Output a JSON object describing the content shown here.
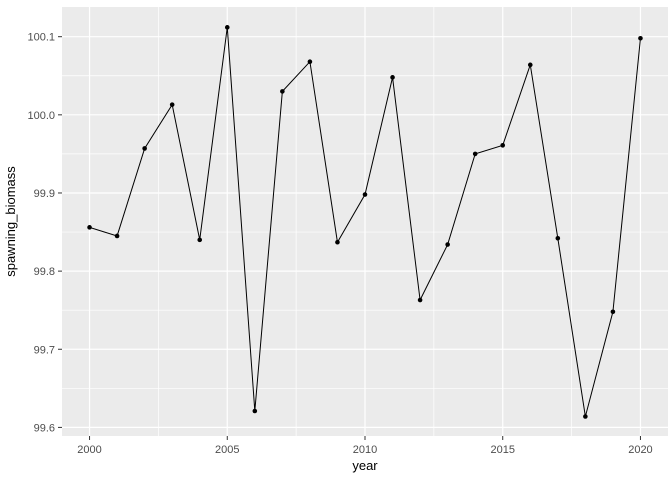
{
  "figure": {
    "background": "#FFFFFF"
  },
  "chart_data": {
    "type": "line",
    "title": "",
    "xlabel": "year",
    "ylabel": "spawning_biomass",
    "x": [
      2000,
      2001,
      2002,
      2003,
      2004,
      2005,
      2006,
      2007,
      2008,
      2009,
      2010,
      2011,
      2012,
      2013,
      2014,
      2015,
      2016,
      2017,
      2018,
      2019,
      2020
    ],
    "series": [
      {
        "name": "spawning_biomass",
        "values": [
          99.856,
          99.845,
          99.957,
          100.013,
          99.84,
          100.112,
          99.621,
          100.03,
          100.068,
          99.837,
          99.898,
          100.048,
          99.763,
          99.834,
          99.95,
          99.961,
          100.064,
          99.842,
          99.614,
          99.748,
          100.098
        ]
      }
    ],
    "xlim": [
      1999,
      2021
    ],
    "ylim": [
      99.589,
      100.138
    ],
    "x_ticks": [
      2000,
      2005,
      2010,
      2015,
      2020
    ],
    "x_tick_labels": [
      "2000",
      "2005",
      "2010",
      "2015",
      "2020"
    ],
    "y_ticks": [
      99.6,
      99.7,
      99.8,
      99.9,
      100.0,
      100.1
    ],
    "y_tick_labels": [
      "99.6",
      "99.7",
      "99.8",
      "99.9",
      "100.0",
      "100.1"
    ],
    "x_minor_ticks": [
      2002.5,
      2007.5,
      2012.5,
      2017.5
    ],
    "y_minor_ticks": [
      99.65,
      99.75,
      99.85,
      99.95,
      100.05
    ],
    "grid": "on",
    "legend": "none",
    "style": {
      "panel_background": "#EBEBEB",
      "gridline_color": "#FFFFFF",
      "line_color": "#000000",
      "point_color": "#000000",
      "tick_mark_color": "#333333",
      "tick_label_color": "#4D4D4D",
      "axis_title_color": "#000000"
    }
  }
}
